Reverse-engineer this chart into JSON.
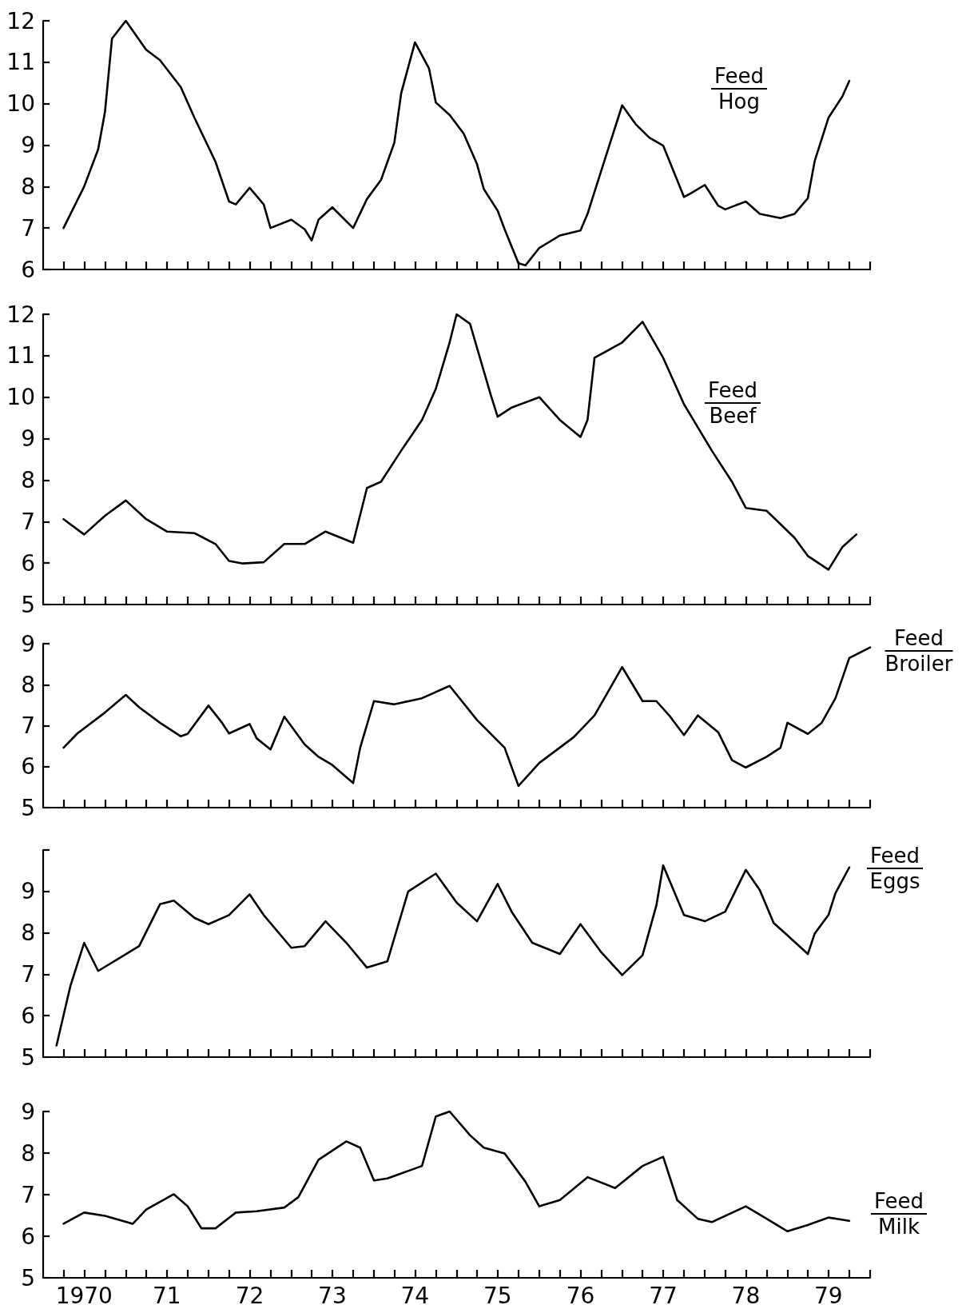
{
  "chart_data": [
    {
      "type": "line",
      "color": "#000000",
      "marker": "none",
      "tick_labels": "y",
      "annotations": [
        "Feed",
        "Hog"
      ],
      "xlim": [
        "1970-01",
        "1980-01"
      ],
      "ylim": [
        6,
        12
      ],
      "yticks": [
        6,
        7,
        8,
        9,
        10,
        11,
        12
      ],
      "xticks": [
        {
          "value": "1970-04",
          "label": null
        },
        {
          "value": "1970-07",
          "label": null
        },
        {
          "value": "1970-10",
          "label": null
        },
        {
          "value": "1971-01",
          "label": null
        },
        {
          "value": "1971-04",
          "label": null
        },
        {
          "value": "1971-07",
          "label": null
        },
        {
          "value": "1971-10",
          "label": null
        },
        {
          "value": "1972-01",
          "label": null
        },
        {
          "value": "1972-04",
          "label": null
        },
        {
          "value": "1972-07",
          "label": null
        },
        {
          "value": "1972-10",
          "label": null
        },
        {
          "value": "1973-01",
          "label": null
        },
        {
          "value": "1973-04",
          "label": null
        },
        {
          "value": "1973-07",
          "label": null
        },
        {
          "value": "1973-10",
          "label": null
        },
        {
          "value": "1974-01",
          "label": null
        },
        {
          "value": "1974-04",
          "label": null
        },
        {
          "value": "1974-07",
          "label": null
        },
        {
          "value": "1974-10",
          "label": null
        },
        {
          "value": "1975-01",
          "label": null
        },
        {
          "value": "1975-04",
          "label": null
        },
        {
          "value": "1975-07",
          "label": null
        },
        {
          "value": "1975-10",
          "label": null
        },
        {
          "value": "1976-01",
          "label": null
        },
        {
          "value": "1976-04",
          "label": null
        },
        {
          "value": "1976-07",
          "label": null
        },
        {
          "value": "1976-10",
          "label": null
        },
        {
          "value": "1977-01",
          "label": null
        },
        {
          "value": "1977-04",
          "label": null
        },
        {
          "value": "1977-07",
          "label": null
        },
        {
          "value": "1977-10",
          "label": null
        },
        {
          "value": "1978-01",
          "label": null
        },
        {
          "value": "1978-04",
          "label": null
        },
        {
          "value": "1978-07",
          "label": null
        },
        {
          "value": "1978-10",
          "label": null
        },
        {
          "value": "1979-01",
          "label": null
        },
        {
          "value": "1979-04",
          "label": null
        },
        {
          "value": "1979-07",
          "label": null
        },
        {
          "value": "1979-10",
          "label": null
        },
        {
          "value": "1980-01",
          "label": null
        }
      ],
      "x": [
        "1970-04",
        "1970-07",
        "1970-09",
        "1970-10",
        "1970-11",
        "1971-01",
        "1971-04",
        "1971-06",
        "1971-09",
        "1971-11",
        "1972-02",
        "1972-04",
        "1972-05",
        "1972-07",
        "1972-09",
        "1972-10",
        "1973-01",
        "1973-03",
        "1973-04",
        "1973-05",
        "1973-07",
        "1973-10",
        "1973-12",
        "1974-02",
        "1974-04",
        "1974-05",
        "1974-07",
        "1974-09",
        "1974-10",
        "1974-12",
        "1975-02",
        "1975-04",
        "1975-05",
        "1975-07",
        "1975-08",
        "1975-10",
        "1975-11",
        "1976-01",
        "1976-04",
        "1976-07",
        "1976-08",
        "1976-10",
        "1977-01",
        "1977-03",
        "1977-05",
        "1977-07",
        "1977-10",
        "1977-11",
        "1978-01",
        "1978-03",
        "1978-04",
        "1978-07",
        "1978-09",
        "1978-12",
        "1979-02",
        "1979-04",
        "1979-05",
        "1979-07",
        "1979-09",
        "1979-10"
      ],
      "values": [
        7.0,
        8.0,
        8.9,
        9.8,
        11.57,
        12.0,
        11.3,
        11.05,
        10.4,
        9.65,
        8.6,
        7.64,
        7.57,
        7.97,
        7.57,
        7.0,
        7.2,
        6.97,
        6.7,
        7.2,
        7.5,
        7.0,
        7.7,
        8.16,
        9.06,
        10.25,
        11.48,
        10.85,
        10.03,
        9.73,
        9.28,
        8.54,
        7.94,
        7.42,
        6.97,
        6.15,
        6.1,
        6.52,
        6.82,
        6.94,
        7.34,
        8.39,
        9.96,
        9.51,
        9.18,
        8.99,
        7.75,
        7.84,
        8.04,
        7.54,
        7.45,
        7.64,
        7.34,
        7.24,
        7.34,
        7.72,
        8.61,
        9.66,
        10.18,
        10.55
      ]
    },
    {
      "type": "line",
      "color": "#000000",
      "marker": "none",
      "tick_labels": "y",
      "annotations": [
        "Feed",
        "Beef"
      ],
      "xlim": [
        "1970-01",
        "1980-01"
      ],
      "ylim": [
        5,
        12
      ],
      "yticks": [
        5,
        6,
        7,
        8,
        9,
        10,
        11,
        12
      ],
      "xticks": [
        {
          "value": "1970-04",
          "label": null
        },
        {
          "value": "1970-07",
          "label": null
        },
        {
          "value": "1970-10",
          "label": null
        },
        {
          "value": "1971-01",
          "label": null
        },
        {
          "value": "1971-04",
          "label": null
        },
        {
          "value": "1971-07",
          "label": null
        },
        {
          "value": "1971-10",
          "label": null
        },
        {
          "value": "1972-01",
          "label": null
        },
        {
          "value": "1972-04",
          "label": null
        },
        {
          "value": "1972-07",
          "label": null
        },
        {
          "value": "1972-10",
          "label": null
        },
        {
          "value": "1973-01",
          "label": null
        },
        {
          "value": "1973-04",
          "label": null
        },
        {
          "value": "1973-07",
          "label": null
        },
        {
          "value": "1973-10",
          "label": null
        },
        {
          "value": "1974-01",
          "label": null
        },
        {
          "value": "1974-04",
          "label": null
        },
        {
          "value": "1974-07",
          "label": null
        },
        {
          "value": "1974-10",
          "label": null
        },
        {
          "value": "1975-01",
          "label": null
        },
        {
          "value": "1975-04",
          "label": null
        },
        {
          "value": "1975-07",
          "label": null
        },
        {
          "value": "1975-10",
          "label": null
        },
        {
          "value": "1976-01",
          "label": null
        },
        {
          "value": "1976-04",
          "label": null
        },
        {
          "value": "1976-07",
          "label": null
        },
        {
          "value": "1976-10",
          "label": null
        },
        {
          "value": "1977-01",
          "label": null
        },
        {
          "value": "1977-04",
          "label": null
        },
        {
          "value": "1977-07",
          "label": null
        },
        {
          "value": "1977-10",
          "label": null
        },
        {
          "value": "1978-01",
          "label": null
        },
        {
          "value": "1978-04",
          "label": null
        },
        {
          "value": "1978-07",
          "label": null
        },
        {
          "value": "1978-10",
          "label": null
        },
        {
          "value": "1979-01",
          "label": null
        },
        {
          "value": "1979-04",
          "label": null
        },
        {
          "value": "1979-07",
          "label": null
        },
        {
          "value": "1979-10",
          "label": null
        },
        {
          "value": "1980-01",
          "label": null
        }
      ],
      "x": [
        "1970-04",
        "1970-07",
        "1970-10",
        "1971-01",
        "1971-04",
        "1971-07",
        "1971-11",
        "1972-02",
        "1972-04",
        "1972-06",
        "1972-09",
        "1972-12",
        "1973-03",
        "1973-06",
        "1973-10",
        "1973-12",
        "1974-02",
        "1974-05",
        "1974-08",
        "1974-10",
        "1974-12",
        "1975-01",
        "1975-03",
        "1975-06",
        "1975-07",
        "1975-09",
        "1976-01",
        "1976-04",
        "1976-07",
        "1976-08",
        "1976-09",
        "1977-01",
        "1977-04",
        "1977-07",
        "1977-10",
        "1978-02",
        "1978-05",
        "1978-07",
        "1978-10",
        "1979-02",
        "1979-04",
        "1979-07",
        "1979-09",
        "1979-11"
      ],
      "values": [
        7.06,
        6.69,
        7.14,
        7.51,
        7.06,
        6.76,
        6.72,
        6.46,
        6.05,
        5.99,
        6.02,
        6.46,
        6.46,
        6.76,
        6.49,
        7.81,
        7.96,
        8.71,
        9.45,
        10.2,
        11.32,
        12.0,
        11.77,
        10.05,
        9.53,
        9.75,
        10.0,
        9.45,
        9.04,
        9.45,
        10.95,
        11.32,
        11.82,
        10.95,
        9.83,
        8.71,
        7.96,
        7.33,
        7.26,
        6.61,
        6.17,
        5.84,
        6.39,
        6.69
      ]
    },
    {
      "type": "line",
      "color": "#000000",
      "marker": "none",
      "tick_labels": "y",
      "annotations": [
        "Feed",
        "Broiler"
      ],
      "xlim": [
        "1970-01",
        "1980-01"
      ],
      "ylim": [
        5,
        9
      ],
      "yticks": [
        5,
        6,
        7,
        8,
        9
      ],
      "xticks": [
        {
          "value": "1970-04",
          "label": null
        },
        {
          "value": "1970-07",
          "label": null
        },
        {
          "value": "1970-10",
          "label": null
        },
        {
          "value": "1971-01",
          "label": null
        },
        {
          "value": "1971-04",
          "label": null
        },
        {
          "value": "1971-07",
          "label": null
        },
        {
          "value": "1971-10",
          "label": null
        },
        {
          "value": "1972-01",
          "label": null
        },
        {
          "value": "1972-04",
          "label": null
        },
        {
          "value": "1972-07",
          "label": null
        },
        {
          "value": "1972-10",
          "label": null
        },
        {
          "value": "1973-01",
          "label": null
        },
        {
          "value": "1973-04",
          "label": null
        },
        {
          "value": "1973-07",
          "label": null
        },
        {
          "value": "1973-10",
          "label": null
        },
        {
          "value": "1974-01",
          "label": null
        },
        {
          "value": "1974-04",
          "label": null
        },
        {
          "value": "1974-07",
          "label": null
        },
        {
          "value": "1974-10",
          "label": null
        },
        {
          "value": "1975-01",
          "label": null
        },
        {
          "value": "1975-04",
          "label": null
        },
        {
          "value": "1975-07",
          "label": null
        },
        {
          "value": "1975-10",
          "label": null
        },
        {
          "value": "1976-01",
          "label": null
        },
        {
          "value": "1976-04",
          "label": null
        },
        {
          "value": "1976-07",
          "label": null
        },
        {
          "value": "1976-10",
          "label": null
        },
        {
          "value": "1977-01",
          "label": null
        },
        {
          "value": "1977-04",
          "label": null
        },
        {
          "value": "1977-07",
          "label": null
        },
        {
          "value": "1977-10",
          "label": null
        },
        {
          "value": "1978-01",
          "label": null
        },
        {
          "value": "1978-04",
          "label": null
        },
        {
          "value": "1978-07",
          "label": null
        },
        {
          "value": "1978-10",
          "label": null
        },
        {
          "value": "1979-01",
          "label": null
        },
        {
          "value": "1979-04",
          "label": null
        },
        {
          "value": "1979-07",
          "label": null
        },
        {
          "value": "1979-10",
          "label": null
        },
        {
          "value": "1980-01",
          "label": null
        }
      ],
      "x": [
        "1970-04",
        "1970-06",
        "1970-10",
        "1971-01",
        "1971-03",
        "1971-06",
        "1971-09",
        "1971-10",
        "1972-01",
        "1972-03",
        "1972-04",
        "1972-07",
        "1972-08",
        "1972-10",
        "1972-12",
        "1973-03",
        "1973-05",
        "1973-07",
        "1973-10",
        "1973-11",
        "1974-01",
        "1974-04",
        "1974-08",
        "1974-12",
        "1975-04",
        "1975-08",
        "1975-10",
        "1976-01",
        "1976-06",
        "1976-09",
        "1977-01",
        "1977-04",
        "1977-06",
        "1977-08",
        "1977-10",
        "1977-12",
        "1978-03",
        "1978-05",
        "1978-07",
        "1978-10",
        "1978-12",
        "1979-01",
        "1979-04",
        "1979-06",
        "1979-08",
        "1979-10",
        "1980-01"
      ],
      "values": [
        6.46,
        6.81,
        7.32,
        7.75,
        7.45,
        7.07,
        6.74,
        6.8,
        7.49,
        7.07,
        6.81,
        7.04,
        6.69,
        6.42,
        7.22,
        6.54,
        6.24,
        6.04,
        5.6,
        6.46,
        7.6,
        7.52,
        7.67,
        7.97,
        7.14,
        6.46,
        5.53,
        6.09,
        6.72,
        7.25,
        8.43,
        7.6,
        7.6,
        7.22,
        6.77,
        7.25,
        6.84,
        6.16,
        5.98,
        6.24,
        6.46,
        7.07,
        6.8,
        7.07,
        7.67,
        8.65,
        8.91
      ]
    },
    {
      "type": "line",
      "color": "#000000",
      "marker": "none",
      "tick_labels": "y",
      "annotations": [
        "Feed",
        "Eggs"
      ],
      "xlim": [
        "1970-01",
        "1980-01"
      ],
      "ylim": [
        5,
        10
      ],
      "yticks": [
        5,
        6,
        7,
        8,
        9,
        {
          "value": 10,
          "label": null
        }
      ],
      "xticks": [
        {
          "value": "1970-04",
          "label": null
        },
        {
          "value": "1970-07",
          "label": null
        },
        {
          "value": "1970-10",
          "label": null
        },
        {
          "value": "1971-01",
          "label": null
        },
        {
          "value": "1971-04",
          "label": null
        },
        {
          "value": "1971-07",
          "label": null
        },
        {
          "value": "1971-10",
          "label": null
        },
        {
          "value": "1972-01",
          "label": null
        },
        {
          "value": "1972-04",
          "label": null
        },
        {
          "value": "1972-07",
          "label": null
        },
        {
          "value": "1972-10",
          "label": null
        },
        {
          "value": "1973-01",
          "label": null
        },
        {
          "value": "1973-04",
          "label": null
        },
        {
          "value": "1973-07",
          "label": null
        },
        {
          "value": "1973-10",
          "label": null
        },
        {
          "value": "1974-01",
          "label": null
        },
        {
          "value": "1974-04",
          "label": null
        },
        {
          "value": "1974-07",
          "label": null
        },
        {
          "value": "1974-10",
          "label": null
        },
        {
          "value": "1975-01",
          "label": null
        },
        {
          "value": "1975-04",
          "label": null
        },
        {
          "value": "1975-07",
          "label": null
        },
        {
          "value": "1975-10",
          "label": null
        },
        {
          "value": "1976-01",
          "label": null
        },
        {
          "value": "1976-04",
          "label": null
        },
        {
          "value": "1976-07",
          "label": null
        },
        {
          "value": "1976-10",
          "label": null
        },
        {
          "value": "1977-01",
          "label": null
        },
        {
          "value": "1977-04",
          "label": null
        },
        {
          "value": "1977-07",
          "label": null
        },
        {
          "value": "1977-10",
          "label": null
        },
        {
          "value": "1978-01",
          "label": null
        },
        {
          "value": "1978-04",
          "label": null
        },
        {
          "value": "1978-07",
          "label": null
        },
        {
          "value": "1978-10",
          "label": null
        },
        {
          "value": "1979-01",
          "label": null
        },
        {
          "value": "1979-04",
          "label": null
        },
        {
          "value": "1979-07",
          "label": null
        },
        {
          "value": "1979-10",
          "label": null
        },
        {
          "value": "1980-01",
          "label": null
        }
      ],
      "x": [
        "1970-03",
        "1970-05",
        "1970-07",
        "1970-09",
        "1970-12",
        "1971-03",
        "1971-06",
        "1971-08",
        "1971-11",
        "1972-01",
        "1972-04",
        "1972-07",
        "1972-09",
        "1973-01",
        "1973-03",
        "1973-06",
        "1973-09",
        "1973-12",
        "1974-03",
        "1974-06",
        "1974-10",
        "1975-01",
        "1975-04",
        "1975-07",
        "1975-09",
        "1975-12",
        "1976-04",
        "1976-07",
        "1976-10",
        "1977-01",
        "1977-04",
        "1977-06",
        "1977-07",
        "1977-10",
        "1978-01",
        "1978-04",
        "1978-07",
        "1978-09",
        "1978-11",
        "1979-01",
        "1979-04",
        "1979-05",
        "1979-07",
        "1979-08",
        "1979-10"
      ],
      "values": [
        5.28,
        6.71,
        7.76,
        7.08,
        7.38,
        7.68,
        8.69,
        8.78,
        8.36,
        8.21,
        8.43,
        8.93,
        8.43,
        7.64,
        7.68,
        8.28,
        7.76,
        7.16,
        7.31,
        9.0,
        9.43,
        8.73,
        8.28,
        9.18,
        8.51,
        7.76,
        7.49,
        8.21,
        7.53,
        6.98,
        7.46,
        8.66,
        9.63,
        8.43,
        8.28,
        8.51,
        9.52,
        9.03,
        8.24,
        7.94,
        7.49,
        7.98,
        8.43,
        8.96,
        9.58
      ]
    },
    {
      "type": "line",
      "color": "#000000",
      "marker": "none",
      "annotations": [
        "Feed",
        "Milk"
      ],
      "xlim": [
        "1970-01",
        "1980-01"
      ],
      "ylim": [
        5,
        9
      ],
      "yticks": [
        5,
        6,
        7,
        8,
        9
      ],
      "xticks": [
        {
          "value": "1970-04",
          "label": null
        },
        {
          "value": "1970-07",
          "label": "1970"
        },
        {
          "value": "1970-10",
          "label": null
        },
        {
          "value": "1971-01",
          "label": null
        },
        {
          "value": "1971-04",
          "label": null
        },
        {
          "value": "1971-07",
          "label": "71"
        },
        {
          "value": "1971-10",
          "label": null
        },
        {
          "value": "1972-01",
          "label": null
        },
        {
          "value": "1972-04",
          "label": null
        },
        {
          "value": "1972-07",
          "label": "72"
        },
        {
          "value": "1972-10",
          "label": null
        },
        {
          "value": "1973-01",
          "label": null
        },
        {
          "value": "1973-04",
          "label": null
        },
        {
          "value": "1973-07",
          "label": "73"
        },
        {
          "value": "1973-10",
          "label": null
        },
        {
          "value": "1974-01",
          "label": null
        },
        {
          "value": "1974-04",
          "label": null
        },
        {
          "value": "1974-07",
          "label": "74"
        },
        {
          "value": "1974-10",
          "label": null
        },
        {
          "value": "1975-01",
          "label": null
        },
        {
          "value": "1975-04",
          "label": null
        },
        {
          "value": "1975-07",
          "label": "75"
        },
        {
          "value": "1975-10",
          "label": null
        },
        {
          "value": "1976-01",
          "label": null
        },
        {
          "value": "1976-04",
          "label": null
        },
        {
          "value": "1976-07",
          "label": "76"
        },
        {
          "value": "1976-10",
          "label": null
        },
        {
          "value": "1977-01",
          "label": null
        },
        {
          "value": "1977-04",
          "label": null
        },
        {
          "value": "1977-07",
          "label": "77"
        },
        {
          "value": "1977-10",
          "label": null
        },
        {
          "value": "1978-01",
          "label": null
        },
        {
          "value": "1978-04",
          "label": null
        },
        {
          "value": "1978-07",
          "label": "78"
        },
        {
          "value": "1978-10",
          "label": null
        },
        {
          "value": "1979-01",
          "label": null
        },
        {
          "value": "1979-04",
          "label": null
        },
        {
          "value": "1979-07",
          "label": "79"
        },
        {
          "value": "1979-10",
          "label": null
        },
        {
          "value": "1980-01",
          "label": null
        }
      ],
      "x": [
        "1970-04",
        "1970-07",
        "1970-10",
        "1971-02",
        "1971-04",
        "1971-08",
        "1971-10",
        "1971-12",
        "1972-02",
        "1972-05",
        "1972-08",
        "1972-12",
        "1973-02",
        "1973-05",
        "1973-09",
        "1973-11",
        "1974-01",
        "1974-03",
        "1974-06",
        "1974-08",
        "1974-10",
        "1974-12",
        "1975-03",
        "1975-05",
        "1975-08",
        "1975-11",
        "1976-01",
        "1976-04",
        "1976-08",
        "1976-12",
        "1977-04",
        "1977-07",
        "1977-09",
        "1977-12",
        "1978-02",
        "1978-07",
        "1978-10",
        "1979-01",
        "1979-04",
        "1979-07",
        "1979-10"
      ],
      "values": [
        6.3,
        6.57,
        6.49,
        6.3,
        6.64,
        7.01,
        6.72,
        6.19,
        6.19,
        6.57,
        6.6,
        6.69,
        6.94,
        7.84,
        8.28,
        8.13,
        7.34,
        7.39,
        7.57,
        7.69,
        8.88,
        9.0,
        8.43,
        8.13,
        7.99,
        7.31,
        6.72,
        6.87,
        7.42,
        7.16,
        7.69,
        7.91,
        6.87,
        6.42,
        6.34,
        6.72,
        6.42,
        6.12,
        6.27,
        6.45,
        6.37
      ]
    }
  ]
}
